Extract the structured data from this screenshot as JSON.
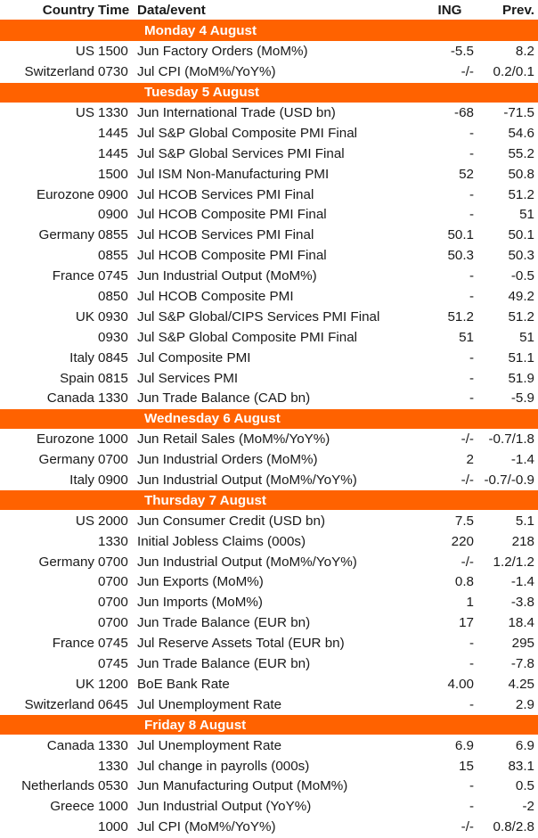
{
  "header": {
    "country": "Country",
    "time": "Time",
    "event": "Data/event",
    "ing": "ING",
    "prev": "Prev."
  },
  "days": [
    {
      "label": "Monday 4 August",
      "rows": [
        {
          "country": "US",
          "time": "1500",
          "event": "Jun Factory Orders (MoM%)",
          "ing": "-5.5",
          "prev": "8.2"
        },
        {
          "country": "Switzerland",
          "time": "0730",
          "event": "Jul CPI (MoM%/YoY%)",
          "ing": "-/-",
          "prev": "0.2/0.1"
        }
      ]
    },
    {
      "label": "Tuesday 5 August",
      "rows": [
        {
          "country": "US",
          "time": "1330",
          "event": "Jun International Trade (USD bn)",
          "ing": "-68",
          "prev": "-71.5"
        },
        {
          "country": "",
          "time": "1445",
          "event": "Jul S&P Global Composite PMI Final",
          "ing": "-",
          "prev": "54.6"
        },
        {
          "country": "",
          "time": "1445",
          "event": "Jul S&P Global Services PMI Final",
          "ing": "-",
          "prev": "55.2"
        },
        {
          "country": "",
          "time": "1500",
          "event": "Jul ISM Non-Manufacturing PMI",
          "ing": "52",
          "prev": "50.8"
        },
        {
          "country": "Eurozone",
          "time": "0900",
          "event": "Jul HCOB Services PMI Final",
          "ing": "-",
          "prev": "51.2"
        },
        {
          "country": "",
          "time": "0900",
          "event": "Jul HCOB Composite PMI Final",
          "ing": "-",
          "prev": "51"
        },
        {
          "country": "Germany",
          "time": "0855",
          "event": "Jul HCOB Services PMI Final",
          "ing": "50.1",
          "prev": "50.1"
        },
        {
          "country": "",
          "time": "0855",
          "event": "Jul HCOB Composite PMI Final",
          "ing": "50.3",
          "prev": "50.3"
        },
        {
          "country": "France",
          "time": "0745",
          "event": "Jun Industrial Output (MoM%)",
          "ing": "-",
          "prev": "-0.5"
        },
        {
          "country": "",
          "time": "0850",
          "event": "Jul HCOB Composite PMI",
          "ing": "-",
          "prev": "49.2"
        },
        {
          "country": "UK",
          "time": "0930",
          "event": "Jul S&P Global/CIPS Services PMI Final",
          "ing": "51.2",
          "prev": "51.2"
        },
        {
          "country": "",
          "time": "0930",
          "event": "Jul S&P Global Composite PMI Final",
          "ing": "51",
          "prev": "51"
        },
        {
          "country": "Italy",
          "time": "0845",
          "event": "Jul Composite PMI",
          "ing": "-",
          "prev": "51.1"
        },
        {
          "country": "Spain",
          "time": "0815",
          "event": "Jul Services PMI",
          "ing": "-",
          "prev": "51.9"
        },
        {
          "country": "Canada",
          "time": "1330",
          "event": "Jun Trade Balance (CAD bn)",
          "ing": "-",
          "prev": "-5.9"
        }
      ]
    },
    {
      "label": "Wednesday 6 August",
      "rows": [
        {
          "country": "Eurozone",
          "time": "1000",
          "event": "Jun Retail Sales (MoM%/YoY%)",
          "ing": "-/-",
          "prev": "-0.7/1.8"
        },
        {
          "country": "Germany",
          "time": "0700",
          "event": "Jun Industrial Orders (MoM%)",
          "ing": "2",
          "prev": "-1.4"
        },
        {
          "country": "Italy",
          "time": "0900",
          "event": "Jun Industrial Output (MoM%/YoY%)",
          "ing": "-/-",
          "prev": "-0.7/-0.9"
        }
      ]
    },
    {
      "label": "Thursday 7 August",
      "rows": [
        {
          "country": "US",
          "time": "2000",
          "event": "Jun Consumer Credit (USD bn)",
          "ing": "7.5",
          "prev": "5.1"
        },
        {
          "country": "",
          "time": "1330",
          "event": "Initial Jobless Claims (000s)",
          "ing": "220",
          "prev": "218"
        },
        {
          "country": "Germany",
          "time": "0700",
          "event": "Jun Industrial Output (MoM%/YoY%)",
          "ing": "-/-",
          "prev": "1.2/1.2"
        },
        {
          "country": "",
          "time": "0700",
          "event": "Jun Exports (MoM%)",
          "ing": "0.8",
          "prev": "-1.4"
        },
        {
          "country": "",
          "time": "0700",
          "event": "Jun Imports (MoM%)",
          "ing": "1",
          "prev": "-3.8"
        },
        {
          "country": "",
          "time": "0700",
          "event": "Jun Trade Balance (EUR bn)",
          "ing": "17",
          "prev": "18.4"
        },
        {
          "country": "France",
          "time": "0745",
          "event": "Jul Reserve Assets Total (EUR bn)",
          "ing": "-",
          "prev": "295"
        },
        {
          "country": "",
          "time": "0745",
          "event": "Jun Trade Balance (EUR bn)",
          "ing": "-",
          "prev": "-7.8"
        },
        {
          "country": "UK",
          "time": "1200",
          "event": "BoE Bank Rate",
          "ing": "4.00",
          "prev": "4.25"
        },
        {
          "country": "Switzerland",
          "time": "0645",
          "event": "Jul Unemployment Rate",
          "ing": "-",
          "prev": "2.9"
        }
      ]
    },
    {
      "label": "Friday 8 August",
      "rows": [
        {
          "country": "Canada",
          "time": "1330",
          "event": "Jul Unemployment Rate",
          "ing": "6.9",
          "prev": "6.9"
        },
        {
          "country": "",
          "time": "1330",
          "event": "Jul change in payrolls (000s)",
          "ing": "15",
          "prev": "83.1"
        },
        {
          "country": "Netherlands",
          "time": "0530",
          "event": "Jun Manufacturing Output (MoM%)",
          "ing": "-",
          "prev": "0.5"
        },
        {
          "country": "Greece",
          "time": "1000",
          "event": "Jun Industrial Output (YoY%)",
          "ing": "-",
          "prev": "-2"
        },
        {
          "country": "",
          "time": "1000",
          "event": "Jul CPI (MoM%/YoY%)",
          "ing": "-/-",
          "prev": "0.8/2.8"
        }
      ]
    }
  ]
}
